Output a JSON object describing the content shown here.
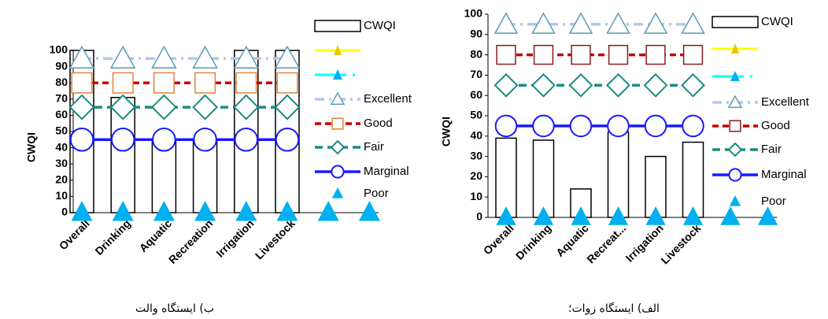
{
  "chart_data": [
    {
      "type": "bar-line",
      "caption": "ب) ایستگاه والت",
      "ylabel": "CWQI",
      "categories": [
        "Overall",
        "Drinking",
        "Aquatic",
        "Recreation",
        "Irrigation",
        "Livestock",
        null,
        null
      ],
      "ylim": [
        0,
        100
      ],
      "yticks": [
        0,
        10,
        20,
        30,
        40,
        50,
        60,
        70,
        80,
        90,
        100
      ],
      "series": [
        {
          "name": "CWQI",
          "kind": "bar",
          "color": "#000000",
          "values": [
            100,
            71,
            45,
            45,
            100,
            100,
            null,
            null
          ]
        },
        {
          "name": "Excellent",
          "kind": "line",
          "marker": "triangle-open",
          "dash": "12 6 3 6",
          "color": "#b4c7e7",
          "marker_color": "#5b9bb5",
          "values": [
            95,
            95,
            95,
            95,
            95,
            95,
            null,
            null
          ]
        },
        {
          "name": "Good",
          "kind": "line",
          "marker": "square",
          "dash": "8 5",
          "color": "#c00000",
          "marker_color": "#e0823a",
          "values": [
            80,
            80,
            80,
            80,
            80,
            80,
            null,
            null
          ]
        },
        {
          "name": "Fair",
          "kind": "line",
          "marker": "diamond",
          "dash": "10 6",
          "color": "#1d8a83",
          "marker_color": "#1d8a83",
          "values": [
            65,
            65,
            65,
            65,
            65,
            65,
            null,
            null
          ]
        },
        {
          "name": "Marginal",
          "kind": "line",
          "marker": "circle",
          "dash": "none",
          "color": "#1a1aff",
          "marker_color": "#1a1aff",
          "values": [
            45,
            45,
            45,
            45,
            45,
            45,
            null,
            null
          ]
        },
        {
          "name": "Poor",
          "kind": "marker",
          "marker": "triangle",
          "color": "#00b0f0",
          "marker_color": "#00b0f0",
          "values": [
            0,
            0,
            0,
            0,
            0,
            0,
            0,
            0
          ]
        }
      ]
    },
    {
      "type": "bar-line",
      "caption": "الف) ایستگاه زوات؛",
      "ylabel": "CWQI",
      "categories": [
        "Overall",
        "Drinking",
        "Aquatic",
        "Recreat...",
        "Irrigation",
        "Livestock",
        null,
        null
      ],
      "ylim": [
        0,
        100
      ],
      "yticks": [
        0,
        10,
        20,
        30,
        40,
        50,
        60,
        70,
        80,
        90,
        100
      ],
      "series": [
        {
          "name": "CWQI",
          "kind": "bar",
          "color": "#000000",
          "values": [
            39,
            38,
            14,
            42,
            30,
            37,
            null,
            null
          ]
        },
        {
          "name": "Excellent",
          "kind": "line",
          "marker": "triangle-open",
          "dash": "12 6 3 6",
          "color": "#b4c7e7",
          "marker_color": "#5b9bb5",
          "values": [
            95,
            95,
            95,
            95,
            95,
            95,
            null,
            null
          ]
        },
        {
          "name": "Good",
          "kind": "line",
          "marker": "square",
          "dash": "8 5",
          "color": "#c00000",
          "marker_color": "#8b1a1a",
          "values": [
            80,
            80,
            80,
            80,
            80,
            80,
            null,
            null
          ]
        },
        {
          "name": "Fair",
          "kind": "line",
          "marker": "diamond",
          "dash": "10 6",
          "color": "#1d8a83",
          "marker_color": "#1d8a83",
          "values": [
            65,
            65,
            65,
            65,
            65,
            65,
            null,
            null
          ]
        },
        {
          "name": "Marginal",
          "kind": "line",
          "marker": "circle",
          "dash": "none",
          "color": "#1a1aff",
          "marker_color": "#1a1aff",
          "values": [
            45,
            45,
            45,
            45,
            45,
            45,
            null,
            null
          ]
        },
        {
          "name": "Poor",
          "kind": "marker",
          "marker": "triangle",
          "color": "#00b0f0",
          "marker_color": "#00b0f0",
          "values": [
            0,
            0,
            0,
            0,
            0,
            0,
            0,
            0
          ]
        }
      ]
    }
  ]
}
